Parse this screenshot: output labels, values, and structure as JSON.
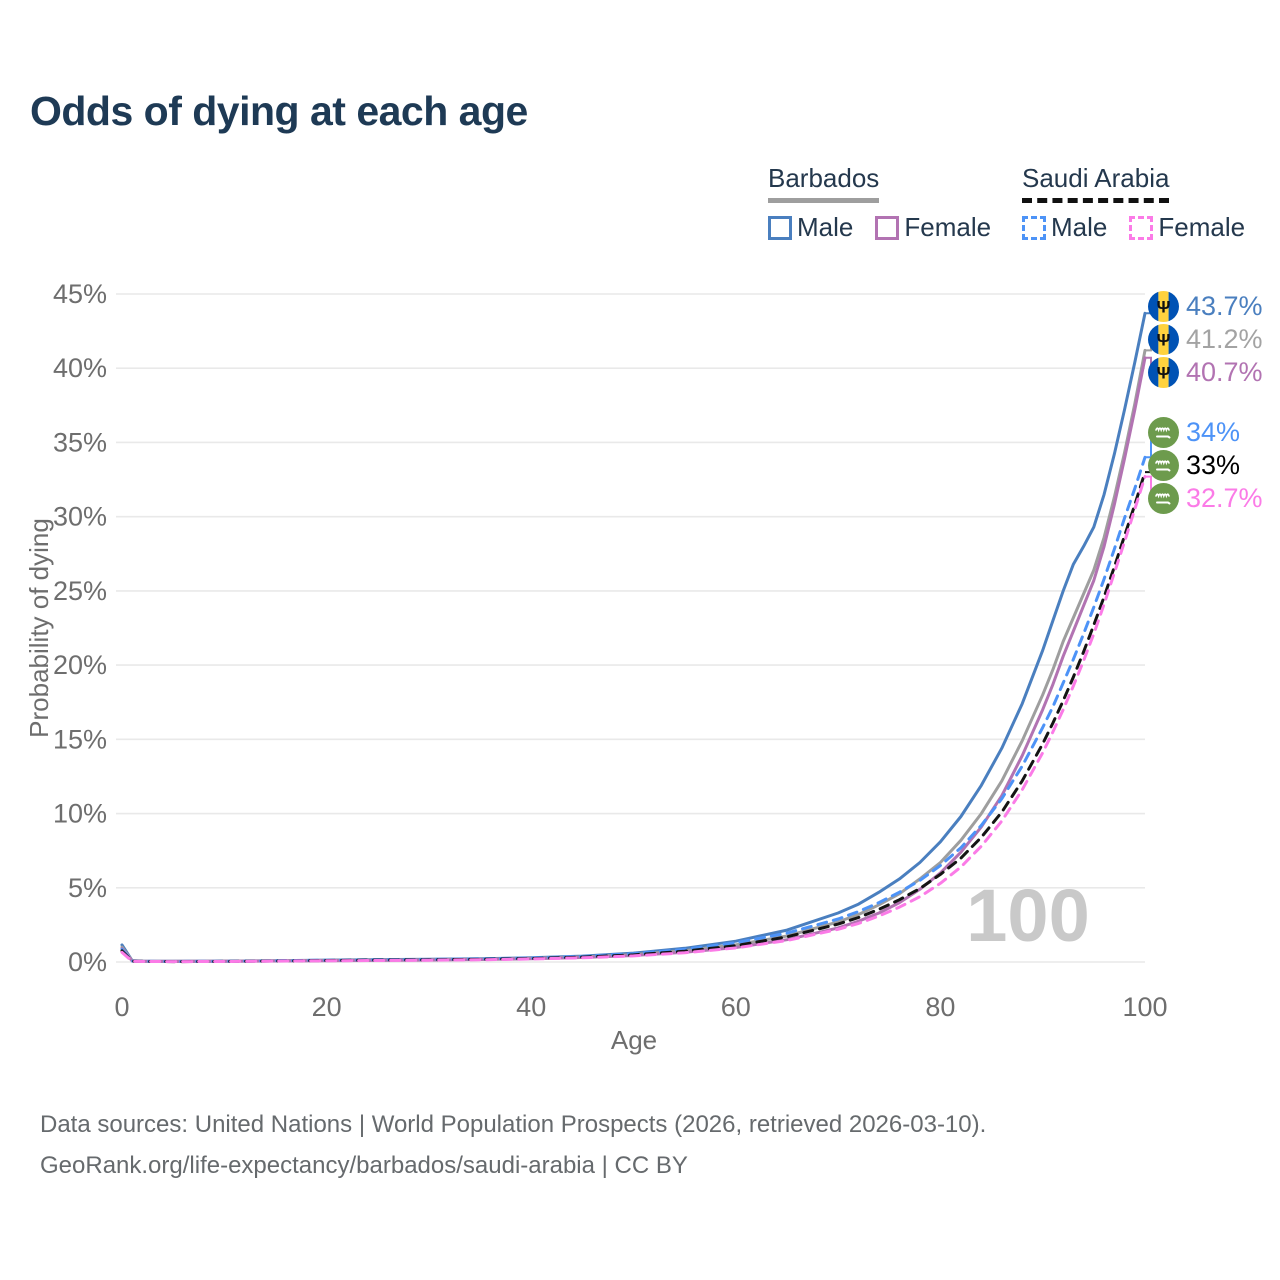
{
  "title": "Odds of dying at each age",
  "legend": {
    "position": "top-right",
    "groups": [
      {
        "id": "barbados",
        "label": "Barbados",
        "line_style": "solid",
        "line_color": "#9e9e9e",
        "items": [
          {
            "label": "Male",
            "color": "#4a7fbf",
            "dashed": false
          },
          {
            "label": "Female",
            "color": "#b273b2",
            "dashed": false
          }
        ]
      },
      {
        "id": "saudi-arabia",
        "label": "Saudi Arabia",
        "line_style": "dashed",
        "line_color": "#111111",
        "items": [
          {
            "label": "Male",
            "color": "#4d93f7",
            "dashed": true
          },
          {
            "label": "Female",
            "color": "#fb7be7",
            "dashed": true
          }
        ]
      }
    ]
  },
  "chart_data": {
    "type": "line",
    "title": "Odds of dying at each age",
    "xlabel": "Age",
    "ylabel": "Probability of dying",
    "xlim": [
      0,
      100
    ],
    "ylim": [
      0,
      45
    ],
    "grid": "horizontal",
    "legend_position": "top-right",
    "watermark": "100",
    "x_ticks": [
      0,
      20,
      40,
      60,
      80,
      100
    ],
    "y_tick_values": [
      0,
      5,
      10,
      15,
      20,
      25,
      30,
      35,
      40,
      45
    ],
    "y_tick_labels": [
      "0%",
      "5%",
      "10%",
      "15%",
      "20%",
      "25%",
      "30%",
      "35%",
      "40%",
      "45%"
    ],
    "ages": [
      0,
      1,
      2,
      5,
      10,
      15,
      20,
      25,
      30,
      35,
      40,
      45,
      50,
      55,
      60,
      65,
      70,
      72,
      74,
      76,
      78,
      80,
      82,
      84,
      86,
      88,
      90,
      91,
      92,
      93,
      94,
      95,
      96,
      97,
      98,
      99,
      100
    ],
    "series": [
      {
        "name": "Barbados Male",
        "country": "Barbados",
        "sex": "Male",
        "color": "#4a7fbf",
        "dashed": false,
        "flag": "barbados",
        "end_label": "43.7%",
        "end_value": 43.7,
        "values": [
          1.15,
          0.09,
          0.06,
          0.05,
          0.06,
          0.09,
          0.13,
          0.16,
          0.18,
          0.22,
          0.28,
          0.4,
          0.6,
          0.92,
          1.4,
          2.15,
          3.3,
          3.9,
          4.7,
          5.6,
          6.7,
          8.1,
          9.8,
          11.9,
          14.4,
          17.4,
          21.0,
          23.0,
          25.0,
          26.8,
          28.0,
          29.3,
          31.5,
          34.2,
          37.2,
          40.4,
          43.7
        ]
      },
      {
        "name": "Barbados (both sexes)",
        "country": "Barbados",
        "sex": "Both",
        "color": "#9e9e9e",
        "dashed": false,
        "flag": "barbados",
        "end_label": "41.2%",
        "end_value": 41.2,
        "values": [
          1.0,
          0.08,
          0.05,
          0.04,
          0.05,
          0.08,
          0.11,
          0.13,
          0.15,
          0.19,
          0.24,
          0.34,
          0.5,
          0.77,
          1.15,
          1.75,
          2.7,
          3.2,
          3.85,
          4.6,
          5.6,
          6.7,
          8.2,
          10.0,
          12.2,
          14.9,
          18.0,
          19.7,
          21.6,
          23.2,
          24.8,
          26.4,
          28.6,
          31.3,
          34.3,
          37.6,
          41.2
        ]
      },
      {
        "name": "Barbados Female",
        "country": "Barbados",
        "sex": "Female",
        "color": "#b273b2",
        "dashed": false,
        "flag": "barbados",
        "end_label": "40.7%",
        "end_value": 40.7,
        "values": [
          0.9,
          0.07,
          0.05,
          0.04,
          0.05,
          0.07,
          0.09,
          0.11,
          0.13,
          0.17,
          0.22,
          0.3,
          0.44,
          0.66,
          0.98,
          1.5,
          2.3,
          2.75,
          3.3,
          4.0,
          4.9,
          6.0,
          7.4,
          9.1,
          11.2,
          13.9,
          17.0,
          18.7,
          20.6,
          22.3,
          24.0,
          25.7,
          28.0,
          30.8,
          33.9,
          37.2,
          40.7
        ]
      },
      {
        "name": "Saudi Arabia Male",
        "country": "Saudi Arabia",
        "sex": "Male",
        "color": "#4d93f7",
        "dashed": true,
        "flag": "saudi-arabia",
        "end_label": "34%",
        "end_value": 34.0,
        "values": [
          0.85,
          0.06,
          0.04,
          0.035,
          0.045,
          0.08,
          0.12,
          0.15,
          0.17,
          0.21,
          0.27,
          0.38,
          0.56,
          0.85,
          1.3,
          1.95,
          2.9,
          3.4,
          4.0,
          4.7,
          5.5,
          6.5,
          7.7,
          9.2,
          11.0,
          13.2,
          15.8,
          17.2,
          18.8,
          20.4,
          22.1,
          23.9,
          25.8,
          27.8,
          29.9,
          31.9,
          34.0
        ]
      },
      {
        "name": "Saudi Arabia (both sexes)",
        "country": "Saudi Arabia",
        "sex": "Both",
        "color": "#141414",
        "dashed": true,
        "flag": "saudi-arabia",
        "end_label": "33%",
        "end_value": 33.0,
        "values": [
          0.75,
          0.055,
          0.04,
          0.03,
          0.04,
          0.07,
          0.1,
          0.13,
          0.15,
          0.18,
          0.23,
          0.33,
          0.48,
          0.73,
          1.1,
          1.7,
          2.55,
          3.0,
          3.55,
          4.2,
          4.95,
          5.9,
          7.0,
          8.4,
          10.1,
          12.2,
          14.7,
          16.1,
          17.6,
          19.2,
          20.9,
          22.7,
          24.6,
          26.6,
          28.7,
          30.8,
          33.0
        ]
      },
      {
        "name": "Saudi Arabia Female",
        "country": "Saudi Arabia",
        "sex": "Female",
        "color": "#fb7be7",
        "dashed": true,
        "flag": "saudi-arabia",
        "end_label": "32.7%",
        "end_value": 32.7,
        "values": [
          0.65,
          0.05,
          0.035,
          0.03,
          0.035,
          0.06,
          0.08,
          0.1,
          0.12,
          0.15,
          0.2,
          0.28,
          0.41,
          0.62,
          0.95,
          1.45,
          2.2,
          2.6,
          3.1,
          3.7,
          4.4,
          5.3,
          6.4,
          7.8,
          9.5,
          11.6,
          14.1,
          15.5,
          17.0,
          18.6,
          20.3,
          22.1,
          24.1,
          26.2,
          28.3,
          30.5,
          32.7
        ]
      }
    ]
  },
  "flag_colors": {
    "barbados_blue": "#0052b4",
    "barbados_yellow": "#ffd23e",
    "barbados_trident": "#111111",
    "saudi_green": "#6d9b4d"
  },
  "end_label_text_colors": [
    "#4a7fbf",
    "#a3a3a3",
    "#b273b2",
    "#4d93f7",
    "#000000",
    "#fb7be7"
  ],
  "footer": {
    "line1": "Data sources: United Nations | World Population Prospects (2026, retrieved 2026-03-10).",
    "line2": "GeoRank.org/life-expectancy/barbados/saudi-arabia | CC BY"
  }
}
